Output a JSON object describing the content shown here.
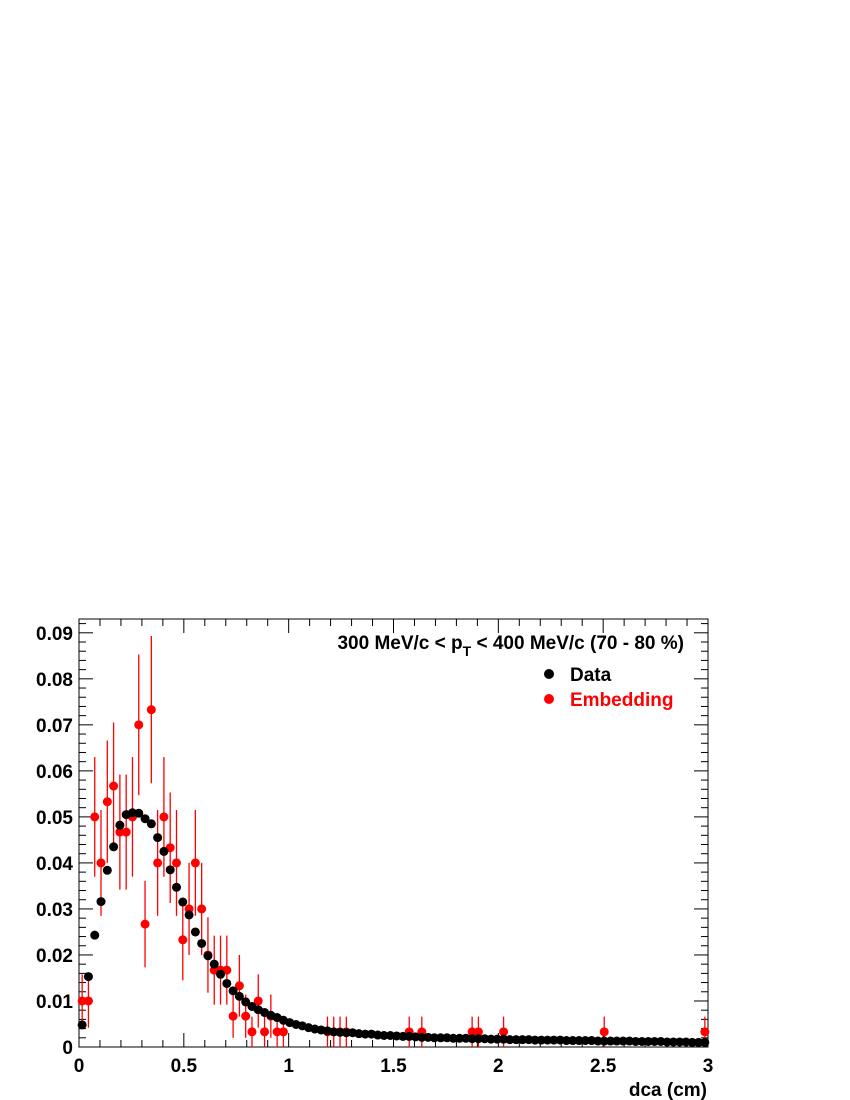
{
  "chart_data": {
    "type": "scatter",
    "title": "",
    "xlabel": "dca (cm)",
    "ylabel": "",
    "xlim": [
      0,
      3
    ],
    "ylim": [
      0,
      0.093
    ],
    "x_ticks": [
      "0",
      "0.5",
      "1",
      "1.5",
      "2",
      "2.5",
      "3"
    ],
    "y_ticks": [
      "0",
      "0.01",
      "0.02",
      "0.03",
      "0.04",
      "0.05",
      "0.06",
      "0.07",
      "0.08",
      "0.09"
    ],
    "annotation": {
      "prefix": "300 MeV/c < p",
      "subscript": "T",
      "suffix": " < 400 MeV/c (70 - 80 %)"
    },
    "legend_position": "top-right",
    "series": [
      {
        "name": "Data",
        "color": "#000000",
        "x": [
          0.015,
          0.045,
          0.075,
          0.105,
          0.135,
          0.165,
          0.195,
          0.225,
          0.255,
          0.285,
          0.315,
          0.345,
          0.375,
          0.405,
          0.435,
          0.465,
          0.495,
          0.525,
          0.555,
          0.585,
          0.615,
          0.645,
          0.675,
          0.705,
          0.735,
          0.765,
          0.795,
          0.825,
          0.855,
          0.885,
          0.915,
          0.945,
          0.975,
          1.005,
          1.035,
          1.065,
          1.095,
          1.125,
          1.155,
          1.185,
          1.215,
          1.245,
          1.275,
          1.305,
          1.335,
          1.365,
          1.395,
          1.425,
          1.455,
          1.485,
          1.515,
          1.545,
          1.575,
          1.605,
          1.635,
          1.665,
          1.695,
          1.725,
          1.755,
          1.785,
          1.815,
          1.845,
          1.875,
          1.905,
          1.935,
          1.965,
          1.995,
          2.025,
          2.055,
          2.085,
          2.115,
          2.145,
          2.175,
          2.205,
          2.235,
          2.265,
          2.295,
          2.325,
          2.355,
          2.385,
          2.415,
          2.445,
          2.475,
          2.505,
          2.535,
          2.565,
          2.595,
          2.625,
          2.655,
          2.685,
          2.715,
          2.745,
          2.775,
          2.805,
          2.835,
          2.865,
          2.895,
          2.925,
          2.955,
          2.985
        ],
        "y": [
          0.0048,
          0.0153,
          0.0243,
          0.0316,
          0.0384,
          0.0435,
          0.0482,
          0.0505,
          0.0509,
          0.0508,
          0.0496,
          0.0485,
          0.0455,
          0.0425,
          0.0385,
          0.0347,
          0.0315,
          0.0287,
          0.025,
          0.0225,
          0.0198,
          0.018,
          0.0158,
          0.0138,
          0.0122,
          0.011,
          0.0098,
          0.0088,
          0.0081,
          0.0075,
          0.0069,
          0.0064,
          0.0058,
          0.0053,
          0.0049,
          0.0046,
          0.0042,
          0.0039,
          0.0037,
          0.0035,
          0.0033,
          0.0032,
          0.0031,
          0.0031,
          0.0029,
          0.0028,
          0.0028,
          0.0026,
          0.0025,
          0.0025,
          0.0024,
          0.0023,
          0.0023,
          0.0022,
          0.0021,
          0.0021,
          0.002,
          0.002,
          0.002,
          0.0019,
          0.0019,
          0.0019,
          0.0018,
          0.0018,
          0.0018,
          0.0017,
          0.0017,
          0.0017,
          0.0016,
          0.0016,
          0.0016,
          0.0016,
          0.0015,
          0.0015,
          0.0015,
          0.0015,
          0.0015,
          0.0014,
          0.0014,
          0.0014,
          0.0014,
          0.0014,
          0.0013,
          0.0013,
          0.0013,
          0.0013,
          0.0013,
          0.0013,
          0.0012,
          0.0012,
          0.0012,
          0.0012,
          0.0012,
          0.0011,
          0.0011,
          0.0011,
          0.0011,
          0.001,
          0.001,
          0.001
        ]
      },
      {
        "name": "Embedding",
        "color": "#ff0000",
        "x": [
          0.015,
          0.045,
          0.075,
          0.105,
          0.135,
          0.165,
          0.195,
          0.225,
          0.255,
          0.285,
          0.315,
          0.345,
          0.375,
          0.405,
          0.435,
          0.465,
          0.495,
          0.525,
          0.555,
          0.585,
          0.615,
          0.645,
          0.675,
          0.705,
          0.735,
          0.765,
          0.795,
          0.825,
          0.855,
          0.885,
          0.915,
          0.945,
          0.975,
          1.185,
          1.215,
          1.245,
          1.275,
          1.575,
          1.635,
          1.875,
          1.905,
          2.025,
          2.505,
          2.985
        ],
        "y": [
          0.01,
          0.01,
          0.05,
          0.04,
          0.0533,
          0.0567,
          0.0467,
          0.0467,
          0.05,
          0.07,
          0.0267,
          0.0733,
          0.04,
          0.05,
          0.0433,
          0.04,
          0.0233,
          0.03,
          0.04,
          0.03,
          0.02,
          0.0167,
          0.0167,
          0.0167,
          0.0067,
          0.0133,
          0.0067,
          0.0033,
          0.01,
          0.0033,
          0.0067,
          0.0033,
          0.0033,
          0.0033,
          0.0033,
          0.0033,
          0.0033,
          0.0033,
          0.0033,
          0.0033,
          0.0033,
          0.0033,
          0.0033,
          0.0033
        ],
        "err": [
          0.0058,
          0.0058,
          0.013,
          0.0115,
          0.0133,
          0.0138,
          0.0125,
          0.0125,
          0.013,
          0.0153,
          0.0094,
          0.016,
          0.0115,
          0.013,
          0.012,
          0.0115,
          0.0088,
          0.01,
          0.0115,
          0.01,
          0.0082,
          0.0075,
          0.0075,
          0.0075,
          0.0047,
          0.0067,
          0.0047,
          0.0033,
          0.0058,
          0.0033,
          0.0047,
          0.0033,
          0.0033,
          0.0033,
          0.0033,
          0.0033,
          0.0033,
          0.0033,
          0.0033,
          0.0033,
          0.0033,
          0.0033,
          0.0033,
          0.0033
        ]
      }
    ]
  }
}
